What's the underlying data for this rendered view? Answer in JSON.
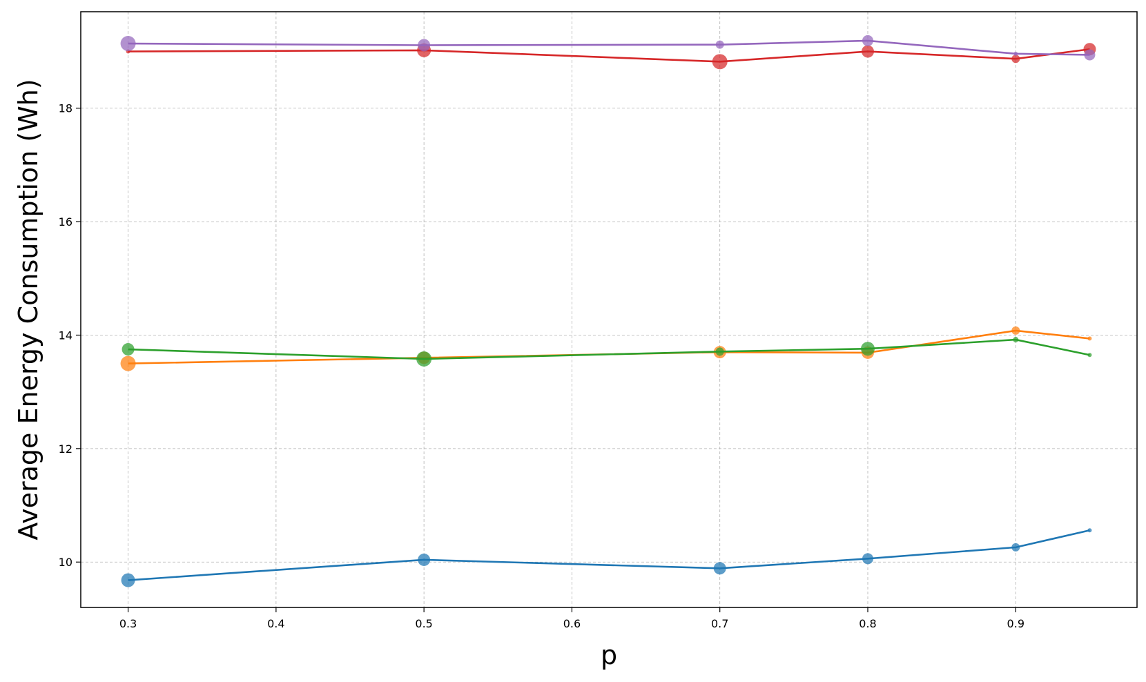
{
  "chart_data": {
    "type": "scatter",
    "title": "",
    "xlabel": "p",
    "ylabel": "Average Energy Consumption (Wh)",
    "xlim": [
      0.268,
      0.982
    ],
    "ylim": [
      9.2,
      19.7
    ],
    "xticks": [
      0.3,
      0.4,
      0.5,
      0.6,
      0.7,
      0.8,
      0.9
    ],
    "xtick_labels": [
      "0.3",
      "0.4",
      "0.5",
      "0.6",
      "0.7",
      "0.8",
      "0.9"
    ],
    "yticks": [
      10,
      12,
      14,
      16,
      18
    ],
    "ytick_labels": [
      "10",
      "12",
      "14",
      "16",
      "18"
    ],
    "grid": true,
    "x": [
      0.3,
      0.5,
      0.7,
      0.8,
      0.9,
      0.95
    ],
    "series": [
      {
        "color": "#1f77b4",
        "y": [
          9.68,
          10.04,
          9.89,
          10.06,
          10.26,
          10.56
        ],
        "marker_size": [
          10,
          9,
          9,
          8,
          6,
          3
        ]
      },
      {
        "color": "#ff7f0e",
        "y": [
          13.5,
          13.6,
          13.7,
          13.69,
          14.08,
          13.94
        ],
        "marker_size": [
          11,
          9,
          9,
          9,
          6,
          3
        ]
      },
      {
        "color": "#2ca02c",
        "y": [
          13.75,
          13.58,
          13.71,
          13.76,
          13.92,
          13.65
        ],
        "marker_size": [
          9,
          11,
          6,
          10,
          4,
          3
        ]
      },
      {
        "color": "#d62728",
        "y": [
          19.0,
          19.02,
          18.82,
          19.0,
          18.87,
          19.04
        ],
        "marker_size": [
          3,
          10,
          11,
          9,
          6,
          9
        ]
      },
      {
        "color": "#9467bd",
        "y": [
          19.14,
          19.11,
          19.12,
          19.19,
          18.96,
          18.94
        ],
        "marker_size": [
          11,
          9,
          6,
          8,
          3,
          8
        ]
      }
    ]
  }
}
